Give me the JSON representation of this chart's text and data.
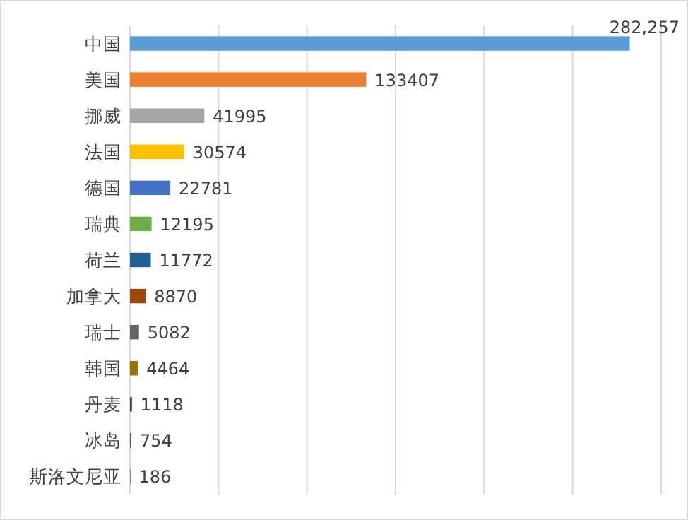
{
  "chart_data": {
    "type": "bar",
    "orientation": "horizontal",
    "categories": [
      "中国",
      "美国",
      "挪威",
      "法国",
      "德国",
      "瑞典",
      "荷兰",
      "加拿大",
      "瑞士",
      "韩国",
      "丹麦",
      "冰岛",
      "斯洛文尼亚"
    ],
    "values": [
      282257,
      133407,
      41995,
      30574,
      22781,
      12195,
      11772,
      8870,
      5082,
      4464,
      1118,
      754,
      186
    ],
    "value_labels": [
      "282,257",
      "133407",
      "41995",
      "30574",
      "22781",
      "12195",
      "11772",
      "8870",
      "5082",
      "4464",
      "1118",
      "754",
      "186"
    ],
    "colors": [
      "#5b9bd5",
      "#ed7d31",
      "#a5a5a5",
      "#ffc000",
      "#4472c4",
      "#70ad47",
      "#255e91",
      "#9e480e",
      "#636363",
      "#997300",
      "#264478",
      "#43682b",
      "#698ed0"
    ],
    "xlim": [
      0,
      300000
    ],
    "xticks": [
      {
        "value": 0,
        "label": null
      },
      {
        "value": 50000,
        "label": null
      },
      {
        "value": 100000,
        "label": null
      },
      {
        "value": 150000,
        "label": null
      },
      {
        "value": 200000,
        "label": null
      },
      {
        "value": 250000,
        "label": null
      },
      {
        "value": 300000,
        "label": null
      }
    ],
    "grid": "x",
    "tick_labels": "y"
  }
}
